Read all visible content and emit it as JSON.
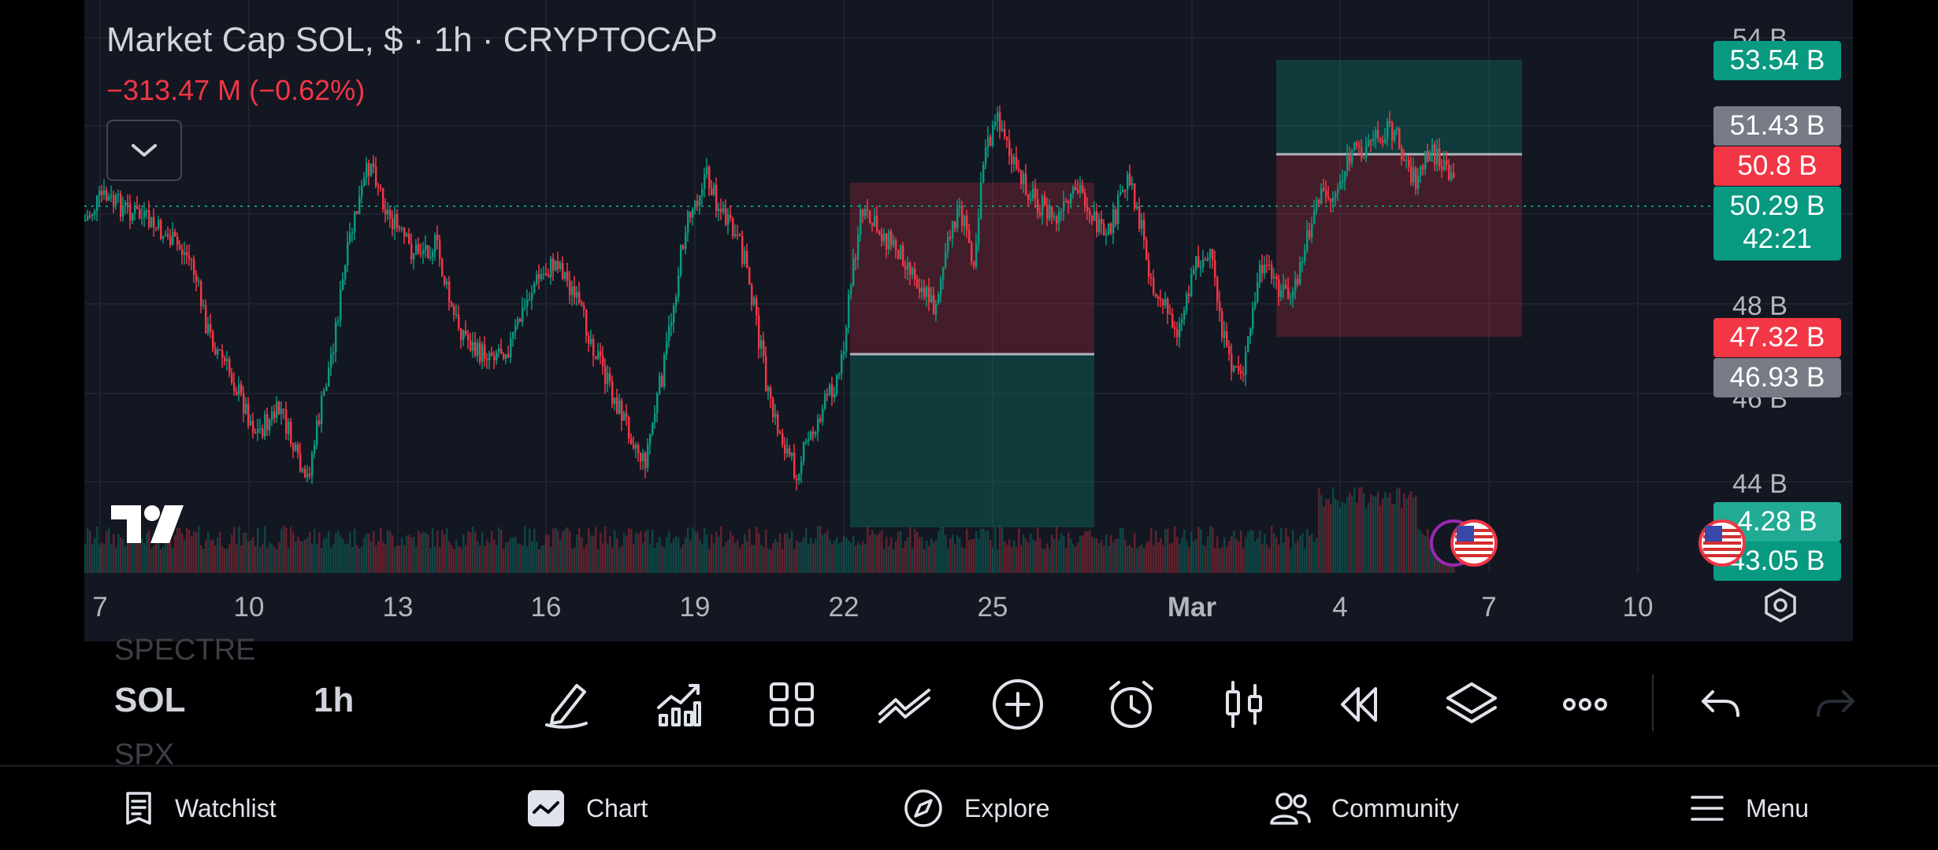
{
  "chart": {
    "title": "Market Cap SOL, $ · 1h · CRYPTOCAP",
    "change": "−313.47 M (−0.62%)",
    "price_axis_labels": [
      "54 B",
      "48 B",
      "46 B",
      "44 B"
    ],
    "price_tags": {
      "tp_upper": "53.54 B",
      "entry_upper": "51.43 B",
      "sl_upper": "50.8 B",
      "last_price": "50.29 B",
      "countdown": "42:21",
      "sl_lower": "47.32 B",
      "entry_lower": "46.93 B",
      "volume": "4.28 B",
      "tp_lower": "43.05 B"
    },
    "time_labels": [
      "7",
      "10",
      "13",
      "16",
      "19",
      "22",
      "25",
      "Mar",
      "4",
      "7",
      "10"
    ],
    "colors": {
      "up": "#089981",
      "down": "#f23645",
      "neutral_tag": "#787b86",
      "background": "#131722"
    }
  },
  "toolbar": {
    "symbol_prev": "SPECTRE",
    "symbol": "SOL",
    "symbol_next": "SPX",
    "interval": "1h",
    "tools": [
      "pencil-icon",
      "indicators-icon",
      "layout-icon",
      "trend-lines-icon",
      "add-icon",
      "alert-icon",
      "candles-icon",
      "replay-icon",
      "layers-icon",
      "more-icon",
      "undo-icon",
      "redo-icon"
    ]
  },
  "nav": {
    "watchlist": "Watchlist",
    "chart": "Chart",
    "explore": "Explore",
    "community": "Community",
    "menu": "Menu"
  }
}
